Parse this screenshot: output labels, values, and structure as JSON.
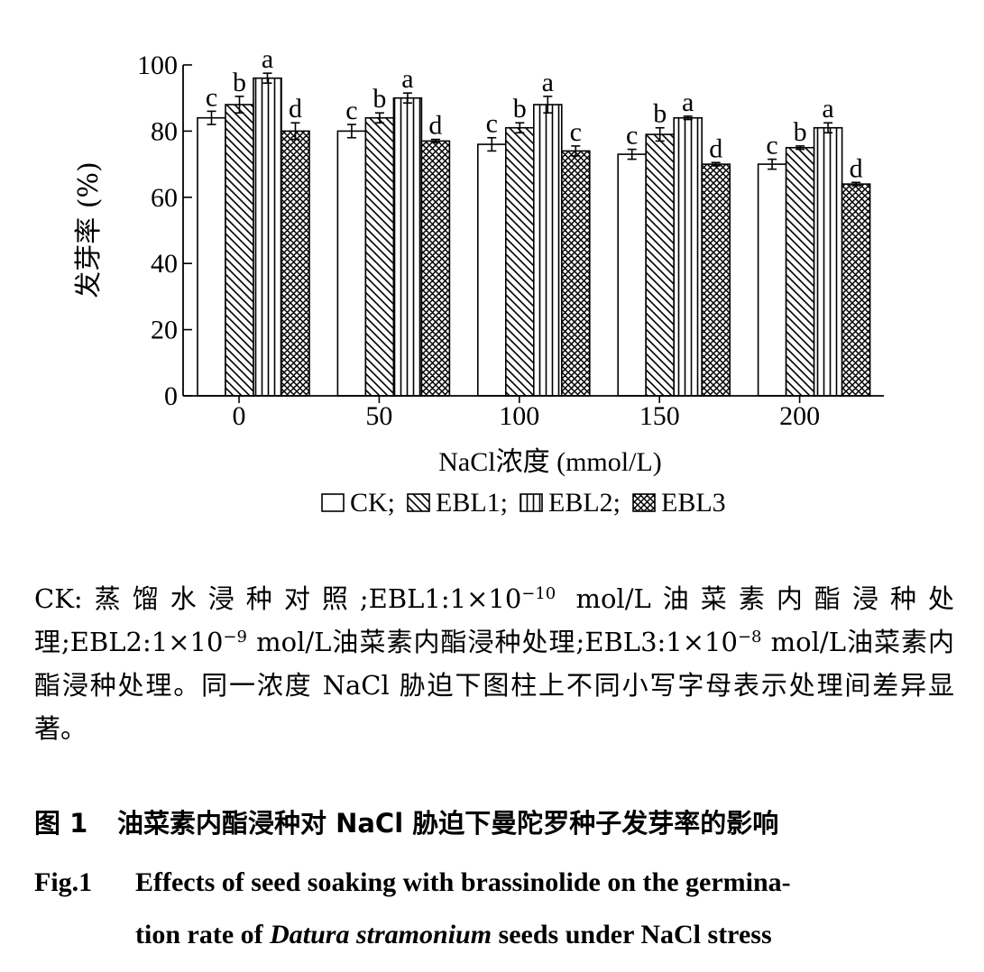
{
  "chart_data": {
    "type": "bar",
    "categories": [
      "0",
      "50",
      "100",
      "150",
      "200"
    ],
    "series": [
      {
        "name": "CK",
        "pattern": "empty",
        "values": [
          84,
          80,
          76,
          73,
          70
        ],
        "errors": [
          2,
          2,
          2,
          1.5,
          1.5
        ],
        "letters": [
          "c",
          "c",
          "c",
          "c",
          "c"
        ]
      },
      {
        "name": "EBL1",
        "pattern": "diagonal",
        "values": [
          88,
          84,
          81,
          79,
          75
        ],
        "errors": [
          2.5,
          1.5,
          1.5,
          2,
          0.5
        ],
        "letters": [
          "b",
          "b",
          "b",
          "b",
          "b"
        ]
      },
      {
        "name": "EBL2",
        "pattern": "vertical",
        "values": [
          96,
          90,
          88,
          84,
          81
        ],
        "errors": [
          1.5,
          1.5,
          2.5,
          0.5,
          1.5
        ],
        "letters": [
          "a",
          "a",
          "a",
          "a",
          "a"
        ]
      },
      {
        "name": "EBL3",
        "pattern": "crosshatch",
        "values": [
          80,
          77,
          74,
          70,
          64
        ],
        "errors": [
          2.5,
          0.5,
          1.5,
          0.5,
          0.5
        ],
        "letters": [
          "d",
          "d",
          "c",
          "d",
          "d"
        ]
      }
    ],
    "title": "",
    "xlabel": "NaCl浓度 (mmol/L)",
    "ylabel": "发芽率 (%)",
    "ylim": [
      0,
      100
    ],
    "yticks": [
      "0",
      "20",
      "40",
      "60",
      "80",
      "100"
    ],
    "legend": {
      "position": "bottom",
      "separator": ";"
    },
    "grid": false,
    "colors": {
      "line": "#000000",
      "background": "#ffffff"
    }
  },
  "caption": {
    "note": {
      "ck": "CK:蒸馏水浸种对照;",
      "ebl1_prefix": "EBL1:1×10",
      "ebl1_exp": "−10",
      "ebl1_suffix": " mol/L油菜素内酯浸种处理;",
      "ebl2_prefix": "EBL2:1×10",
      "ebl2_exp": "−9",
      "ebl2_suffix": " mol/L油菜素内酯浸种处理;",
      "ebl3_prefix": "EBL3:1×10",
      "ebl3_exp": "−8",
      "ebl3_suffix": " mol/L油菜素内酯浸种处理。",
      "significance": "同一浓度 NaCl 胁迫下图柱上不同小写字母表示处理间差异显著。"
    },
    "figure_cn_number": "图 1",
    "figure_cn_title": "油菜素内酯浸种对 NaCl 胁迫下曼陀罗种子发芽率的影响",
    "figure_en_number": "Fig.1",
    "figure_en_title_1": "Effects of seed soaking with brassinolide on the germina-",
    "figure_en_title_2a": "tion rate of ",
    "figure_en_title_species": "Datura stramonium",
    "figure_en_title_2b": " seeds under NaCl stress"
  }
}
